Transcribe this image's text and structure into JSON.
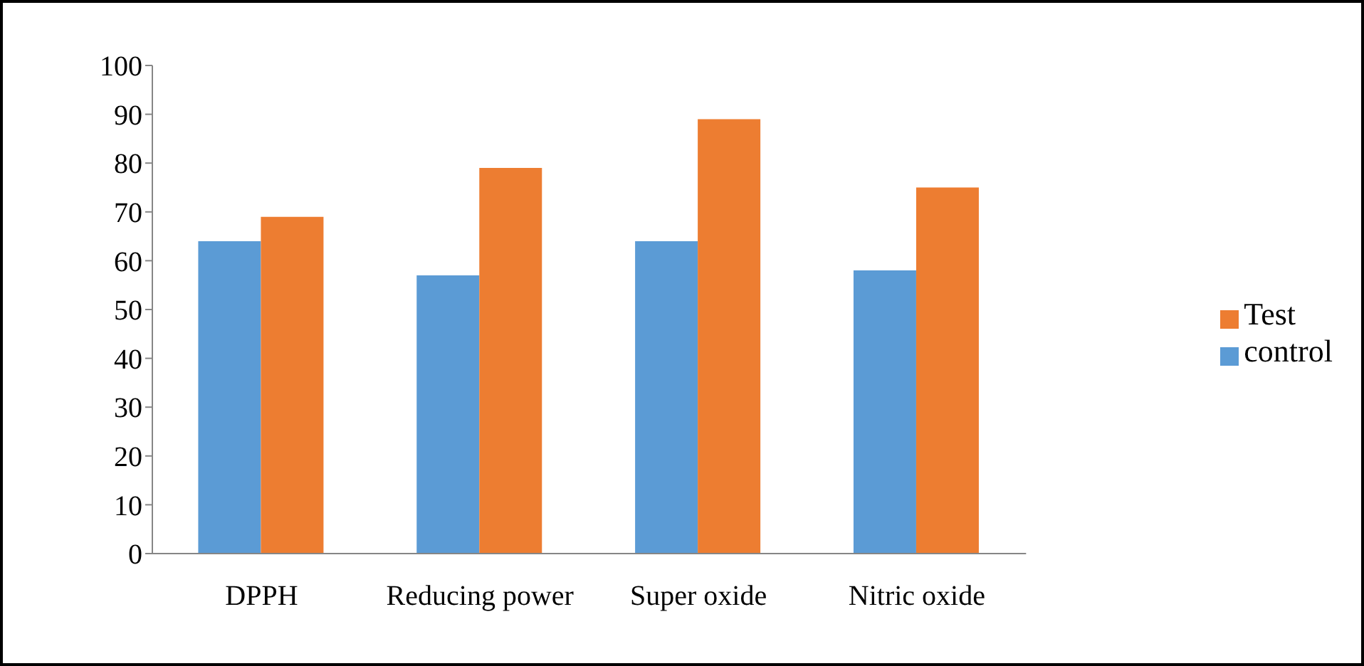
{
  "chart_data": {
    "type": "bar",
    "categories": [
      "DPPH",
      "Reducing power",
      "Super oxide",
      "Nitric oxide"
    ],
    "series": [
      {
        "name": "control",
        "color": "#5b9bd5",
        "values": [
          64,
          57,
          64,
          58
        ]
      },
      {
        "name": "Test",
        "color": "#ed7d31",
        "values": [
          69,
          79,
          89,
          75
        ]
      }
    ],
    "ylim": [
      0,
      100
    ],
    "yticks": [
      0,
      10,
      20,
      30,
      40,
      50,
      60,
      70,
      80,
      90,
      100
    ],
    "grid": false,
    "legend": "right"
  }
}
